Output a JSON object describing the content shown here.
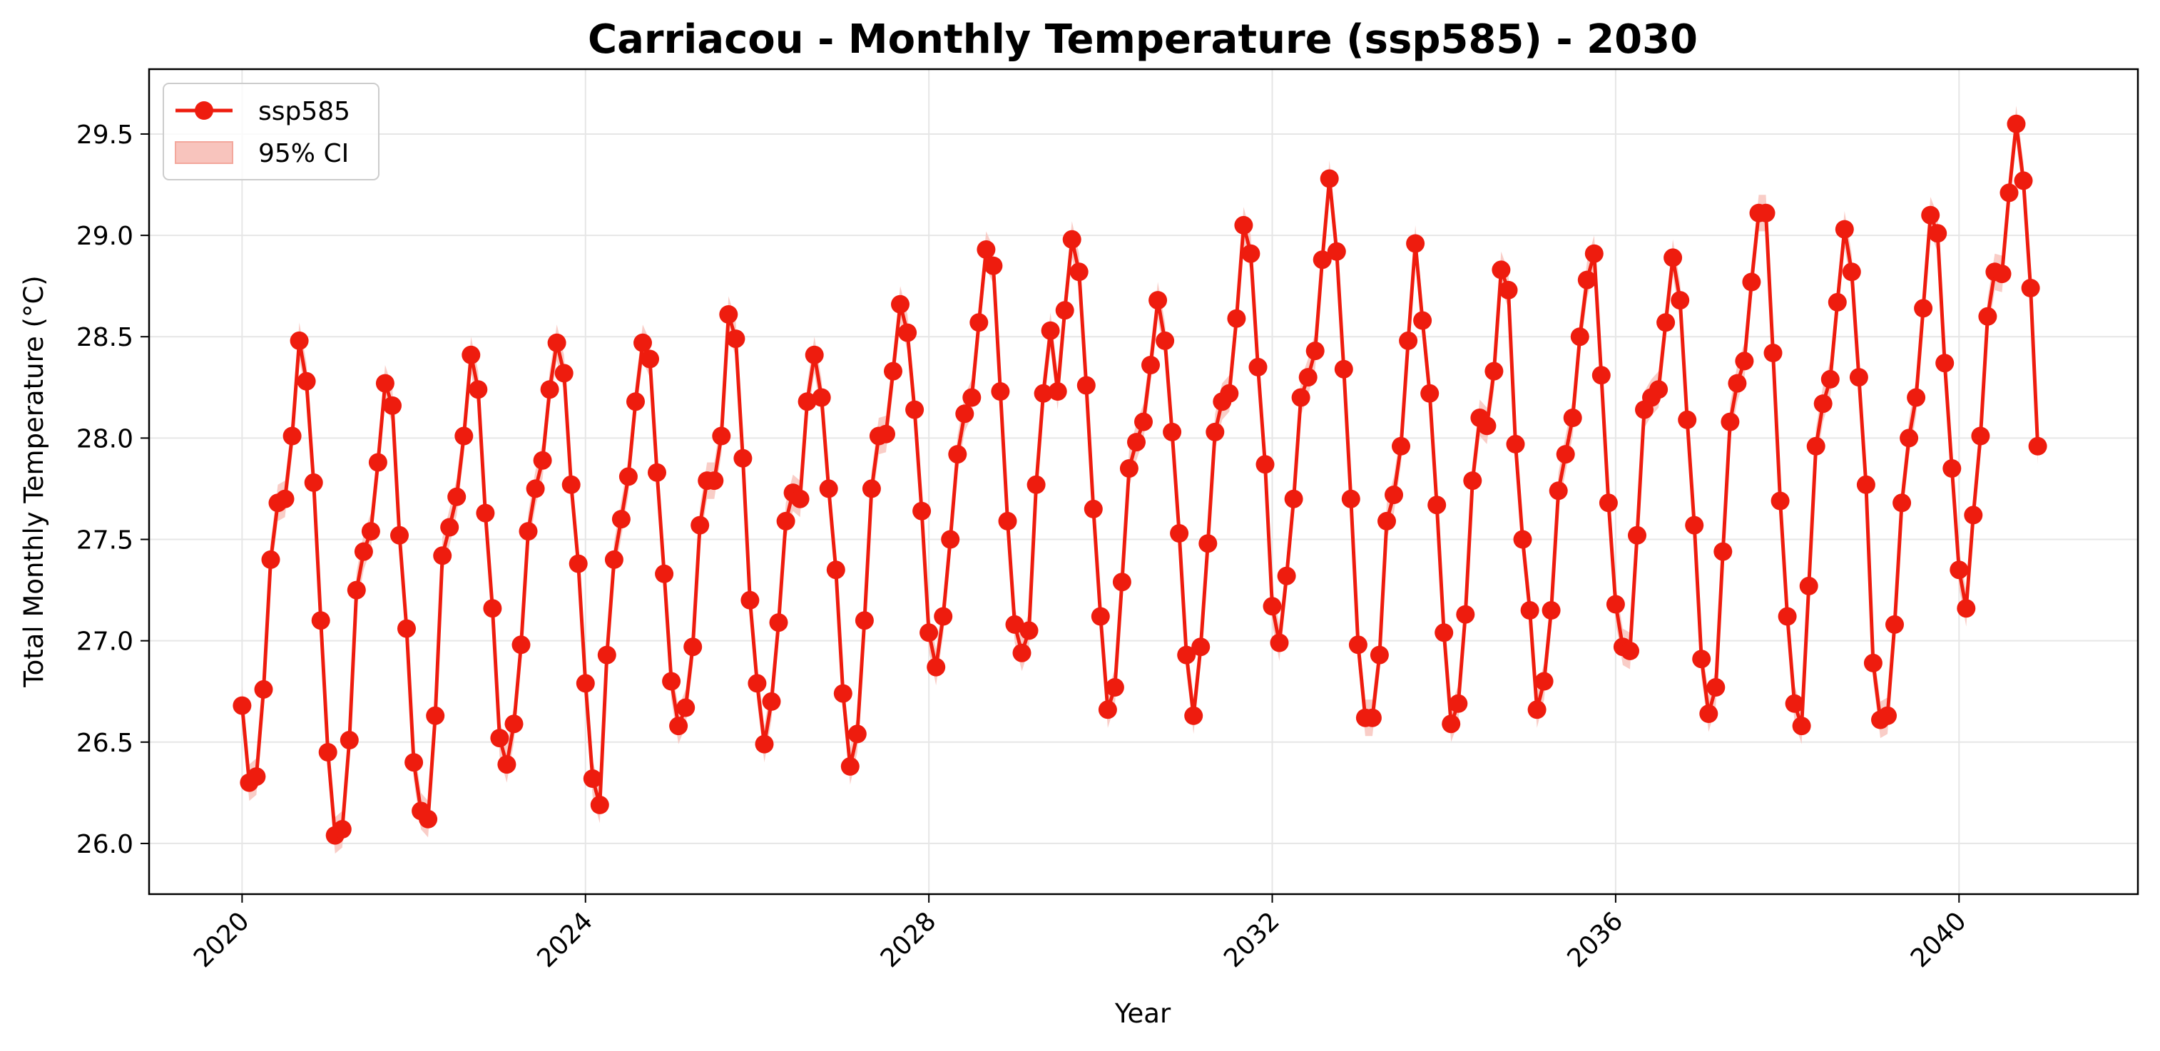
{
  "chart_data": {
    "type": "line",
    "title": "Carriacou - Monthly Temperature (ssp585) - 2030",
    "xlabel": "Year",
    "ylabel": "Total Monthly Temperature (°C)",
    "x_start": "2020-01",
    "x_ticks": [
      "2020",
      "2024",
      "2028",
      "2032",
      "2036",
      "2040"
    ],
    "xlim": [
      "2018-12",
      "2042-02"
    ],
    "ylim": [
      25.75,
      29.82
    ],
    "y_ticks": [
      "26.0",
      "26.5",
      "27.0",
      "27.5",
      "28.0",
      "28.5",
      "29.0",
      "29.5"
    ],
    "grid": true,
    "legend_position": "top-left",
    "series": [
      {
        "name": "ssp585",
        "color": "#ee1c0e",
        "values": [
          26.68,
          26.3,
          26.33,
          26.76,
          27.4,
          27.68,
          27.7,
          28.01,
          28.48,
          28.28,
          27.78,
          27.1,
          26.45,
          26.04,
          26.07,
          26.51,
          27.25,
          27.44,
          27.54,
          27.88,
          28.27,
          28.16,
          27.52,
          27.06,
          26.4,
          26.16,
          26.12,
          26.63,
          27.42,
          27.56,
          27.71,
          28.01,
          28.41,
          28.24,
          27.63,
          27.16,
          26.52,
          26.39,
          26.59,
          26.98,
          27.54,
          27.75,
          27.89,
          28.24,
          28.47,
          28.32,
          27.77,
          27.38,
          26.79,
          26.32,
          26.19,
          26.93,
          27.4,
          27.6,
          27.81,
          28.18,
          28.47,
          28.39,
          27.83,
          27.33,
          26.8,
          26.58,
          26.67,
          26.97,
          27.57,
          27.79,
          27.79,
          28.01,
          28.61,
          28.49,
          27.9,
          27.2,
          26.79,
          26.49,
          26.7,
          27.09,
          27.59,
          27.73,
          27.7,
          28.18,
          28.41,
          28.2,
          27.75,
          27.35,
          26.74,
          26.38,
          26.54,
          27.1,
          27.75,
          28.01,
          28.02,
          28.33,
          28.66,
          28.52,
          28.14,
          27.64,
          27.04,
          26.87,
          27.12,
          27.5,
          27.92,
          28.12,
          28.2,
          28.57,
          28.93,
          28.85,
          28.23,
          27.59,
          27.08,
          26.94,
          27.05,
          27.77,
          28.22,
          28.53,
          28.23,
          28.63,
          28.98,
          28.82,
          28.26,
          27.65,
          27.12,
          26.66,
          26.77,
          27.29,
          27.85,
          27.98,
          28.08,
          28.36,
          28.68,
          28.48,
          28.03,
          27.53,
          26.93,
          26.63,
          26.97,
          27.48,
          28.03,
          28.18,
          28.22,
          28.59,
          29.05,
          28.91,
          28.35,
          27.87,
          27.17,
          26.99,
          27.32,
          27.7,
          28.2,
          28.3,
          28.43,
          28.88,
          29.28,
          28.92,
          28.34,
          27.7,
          26.98,
          26.62,
          26.62,
          26.93,
          27.59,
          27.72,
          27.96,
          28.48,
          28.96,
          28.58,
          28.22,
          27.67,
          27.04,
          26.59,
          26.69,
          27.13,
          27.79,
          28.1,
          28.06,
          28.33,
          28.83,
          28.73,
          27.97,
          27.5,
          27.15,
          26.66,
          26.8,
          27.15,
          27.74,
          27.92,
          28.1,
          28.5,
          28.78,
          28.91,
          28.31,
          27.68,
          27.18,
          26.97,
          26.95,
          27.52,
          28.14,
          28.2,
          28.24,
          28.57,
          28.89,
          28.68,
          28.09,
          27.57,
          26.91,
          26.64,
          26.77,
          27.44,
          28.08,
          28.27,
          28.38,
          28.77,
          29.11,
          29.11,
          28.42,
          27.69,
          27.12,
          26.69,
          26.58,
          27.27,
          27.96,
          28.17,
          28.29,
          28.67,
          29.03,
          28.82,
          28.3,
          27.77,
          26.89,
          26.61,
          26.63,
          27.08,
          27.68,
          28.0,
          28.2,
          28.64,
          29.1,
          29.01,
          28.37,
          27.85,
          27.35,
          27.16,
          27.62,
          28.01,
          28.6,
          28.82,
          28.81,
          29.21,
          29.55,
          29.27,
          28.74,
          27.96
        ]
      }
    ],
    "ci_series": {
      "name": "95% CI",
      "color": "#f8c4bd",
      "halfwidth": 0.09
    },
    "legend": [
      "ssp585",
      "95% CI"
    ]
  }
}
